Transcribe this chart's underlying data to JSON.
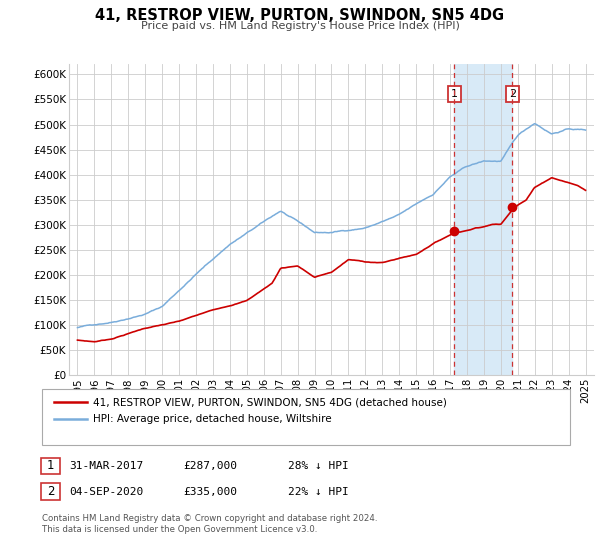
{
  "title": "41, RESTROP VIEW, PURTON, SWINDON, SN5 4DG",
  "subtitle": "Price paid vs. HM Land Registry's House Price Index (HPI)",
  "legend_line1": "41, RESTROP VIEW, PURTON, SWINDON, SN5 4DG (detached house)",
  "legend_line2": "HPI: Average price, detached house, Wiltshire",
  "footnote1": "Contains HM Land Registry data © Crown copyright and database right 2024.",
  "footnote2": "This data is licensed under the Open Government Licence v3.0.",
  "annotation1_label": "1",
  "annotation1_date": "31-MAR-2017",
  "annotation1_price": "£287,000",
  "annotation1_hpi": "28% ↓ HPI",
  "annotation2_label": "2",
  "annotation2_date": "04-SEP-2020",
  "annotation2_price": "£335,000",
  "annotation2_hpi": "22% ↓ HPI",
  "red_color": "#cc0000",
  "blue_color": "#7aaddb",
  "shading_color": "#d8eaf7",
  "grid_color": "#cccccc",
  "vline_color": "#cc3333",
  "box_color": "#cc3333",
  "marker1_x": 2017.25,
  "marker1_y": 287000,
  "marker2_x": 2020.67,
  "marker2_y": 335000,
  "ylim": [
    0,
    620000
  ],
  "xlim": [
    1994.5,
    2025.5
  ],
  "yticks": [
    0,
    50000,
    100000,
    150000,
    200000,
    250000,
    300000,
    350000,
    400000,
    450000,
    500000,
    550000,
    600000
  ],
  "ytick_labels": [
    "£0",
    "£50K",
    "£100K",
    "£150K",
    "£200K",
    "£250K",
    "£300K",
    "£350K",
    "£400K",
    "£450K",
    "£500K",
    "£550K",
    "£600K"
  ],
  "xticks": [
    1995,
    1996,
    1997,
    1998,
    1999,
    2000,
    2001,
    2002,
    2003,
    2004,
    2005,
    2006,
    2007,
    2008,
    2009,
    2010,
    2011,
    2012,
    2013,
    2014,
    2015,
    2016,
    2017,
    2018,
    2019,
    2020,
    2021,
    2022,
    2023,
    2024,
    2025
  ]
}
